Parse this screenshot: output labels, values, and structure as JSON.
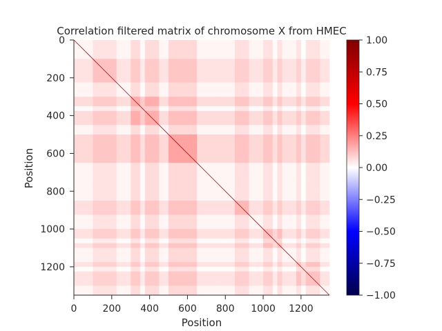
{
  "chart_data": {
    "type": "heatmap",
    "title": "Correlation filtered matrix of chromosome X from HMEC",
    "xlabel": "Position",
    "ylabel": "Position",
    "size": 1350,
    "xlim": [
      0,
      1350
    ],
    "ylim": [
      1350,
      0
    ],
    "x_ticks": [
      0,
      200,
      400,
      600,
      800,
      1000,
      1200
    ],
    "y_ticks": [
      0,
      200,
      400,
      600,
      800,
      1000,
      1200
    ],
    "x_tick_labels": [
      "0",
      "200",
      "400",
      "600",
      "800",
      "1000",
      "1200"
    ],
    "y_tick_labels": [
      "0",
      "200",
      "400",
      "600",
      "800",
      "1000",
      "1200"
    ],
    "diagonal_value": 1.0,
    "background_value": 0.02,
    "colormap": "seismic",
    "colorbar": {
      "vmin": -1.0,
      "vmax": 1.0,
      "ticks": [
        1.0,
        0.75,
        0.5,
        0.25,
        0.0,
        -0.25,
        -0.5,
        -0.75,
        -1.0
      ],
      "tick_labels": [
        "1.00",
        "0.75",
        "0.50",
        "0.25",
        "0.00",
        "−0.25",
        "−0.50",
        "−0.75",
        "−1.00"
      ],
      "colors": {
        "high": "#7f0000",
        "zero": "#ffffff",
        "low": "#00004c"
      }
    },
    "positive_blocks": [
      {
        "start": 110,
        "end": 230,
        "value": 0.1
      },
      {
        "start": 300,
        "end": 460,
        "value": 0.14
      },
      {
        "start": 510,
        "end": 660,
        "value": 0.16
      },
      {
        "start": 850,
        "end": 920,
        "value": 0.12
      },
      {
        "start": 990,
        "end": 1090,
        "value": 0.11
      },
      {
        "start": 1180,
        "end": 1300,
        "value": 0.1
      }
    ],
    "negative_bands": [
      {
        "start": 360,
        "end": 380,
        "value": -0.06
      },
      {
        "start": 1060,
        "end": 1075,
        "value": -0.05
      },
      {
        "start": 1210,
        "end": 1230,
        "value": -0.05
      }
    ]
  }
}
